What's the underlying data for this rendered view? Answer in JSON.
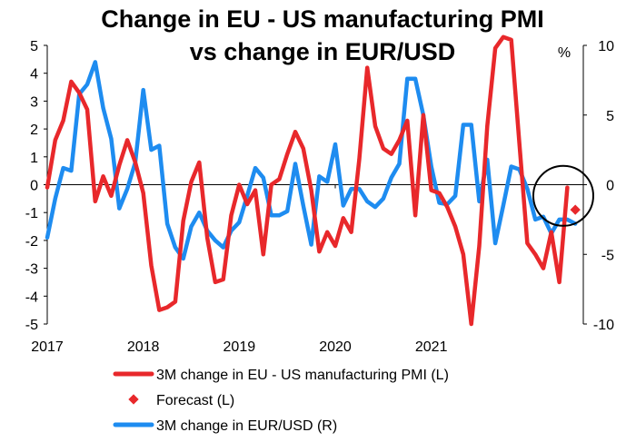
{
  "chart_data": {
    "type": "line",
    "title_lines": [
      "Change in EU - US manufacturing PMI",
      "vs change in EUR/USD"
    ],
    "right_unit": "%",
    "x_labels": [
      "2017",
      "2018",
      "2019",
      "2020",
      "2021"
    ],
    "left_axis": {
      "ylim": [
        -5,
        5
      ],
      "ticks": [
        "5",
        "4",
        "3",
        "2",
        "1",
        "0",
        "-1",
        "-2",
        "-3",
        "-4",
        "-5"
      ]
    },
    "right_axis": {
      "ylim": [
        -10,
        10
      ],
      "ticks": [
        "10",
        "5",
        "0",
        "-5",
        "-10"
      ]
    },
    "series": [
      {
        "name": "3M change in EU - US manufacturing PMI (L)",
        "axis": "left",
        "color": "#e8282b",
        "values": [
          -0.1,
          1.6,
          2.3,
          3.7,
          3.3,
          2.7,
          -0.6,
          0.3,
          -0.4,
          0.7,
          1.6,
          0.8,
          -0.3,
          -2.9,
          -4.5,
          -4.4,
          -4.2,
          -1.3,
          0.1,
          0.8,
          -1.9,
          -3.5,
          -3.4,
          -1.1,
          0.0,
          -0.7,
          -0.2,
          -2.5,
          0.0,
          0.2,
          1.1,
          1.9,
          1.3,
          -0.2,
          -2.4,
          -1.7,
          -2.2,
          -1.2,
          -1.7,
          0.9,
          4.2,
          2.1,
          1.3,
          1.1,
          1.6,
          2.3,
          -1.1,
          2.5,
          -0.2,
          -0.3,
          -0.8,
          -1.5,
          -2.5,
          -5.0,
          -2.2,
          2.1,
          4.9,
          5.3,
          5.2,
          1.5,
          -2.1,
          -2.5,
          -3.0,
          -1.7,
          -3.5,
          -0.1
        ]
      },
      {
        "name": "Forecast (L)",
        "axis": "left",
        "color": "#e8282b",
        "points": [
          {
            "x": 66,
            "y": -0.9
          }
        ]
      },
      {
        "name": "3M change in EUR/USD (R)",
        "axis": "right",
        "color": "#1e8cf0",
        "values": [
          -3.8,
          -1.0,
          1.2,
          1.0,
          6.5,
          7.2,
          8.8,
          5.5,
          3.3,
          -1.7,
          -0.3,
          1.6,
          6.8,
          2.5,
          2.8,
          -2.8,
          -4.5,
          -5.3,
          -3.0,
          -2.0,
          -3.3,
          -4.0,
          -4.5,
          -3.3,
          -2.7,
          -0.8,
          1.2,
          0.5,
          -2.2,
          -2.2,
          -1.9,
          1.5,
          -1.5,
          -4.3,
          0.6,
          0.2,
          2.9,
          -1.5,
          -0.3,
          -0.3,
          -1.2,
          -1.6,
          -1.0,
          0.5,
          1.5,
          7.6,
          7.6,
          5.0,
          1.3,
          -1.3,
          -1.4,
          -0.8,
          4.3,
          4.3,
          -1.2,
          1.8,
          -4.2,
          -1.5,
          1.3,
          1.1,
          -0.3,
          -2.5,
          -2.3,
          -3.5,
          -2.5,
          -2.5,
          -2.8
        ]
      }
    ],
    "legend": [
      {
        "label": "3M change in EU - US manufacturing PMI (L)",
        "marker": "line",
        "color": "#e8282b"
      },
      {
        "label": "Forecast (L)",
        "marker": "diamond",
        "color": "#e8282b"
      },
      {
        "label": "3M change in EUR/USD (R)",
        "marker": "line",
        "color": "#1e8cf0"
      }
    ],
    "annotation": "circle around latest data and forecast"
  }
}
